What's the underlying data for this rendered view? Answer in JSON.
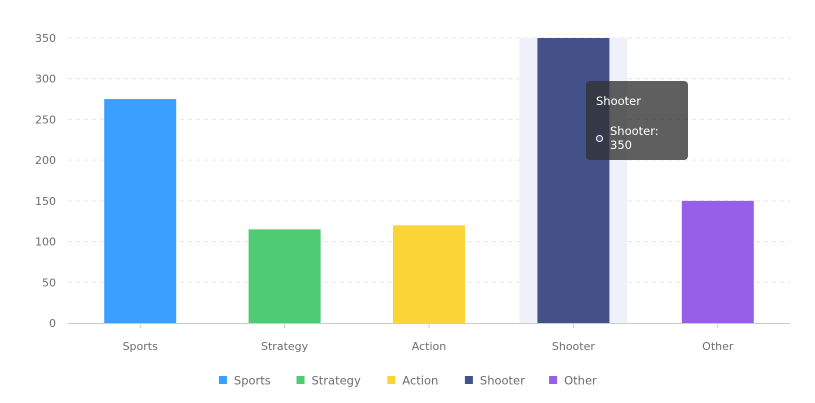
{
  "chart_data": {
    "type": "bar",
    "categories": [
      "Sports",
      "Strategy",
      "Action",
      "Shooter",
      "Other"
    ],
    "values": [
      275,
      115,
      120,
      350,
      150
    ],
    "colors": [
      "#3aa0ff",
      "#4ecb73",
      "#fbd437",
      "#435188",
      "#975fe5"
    ],
    "y_ticks": [
      0,
      50,
      100,
      150,
      200,
      250,
      300,
      350
    ],
    "ylim": [
      0,
      350
    ],
    "grid": "horizontal-dashed",
    "legend_position": "bottom",
    "highlighted_category": "Shooter",
    "highlight_color": "#eef1fa",
    "title": "",
    "xlabel": "",
    "ylabel": ""
  },
  "tooltip": {
    "title": "Shooter",
    "row": "Shooter: 350",
    "dot_color": "#435188"
  }
}
